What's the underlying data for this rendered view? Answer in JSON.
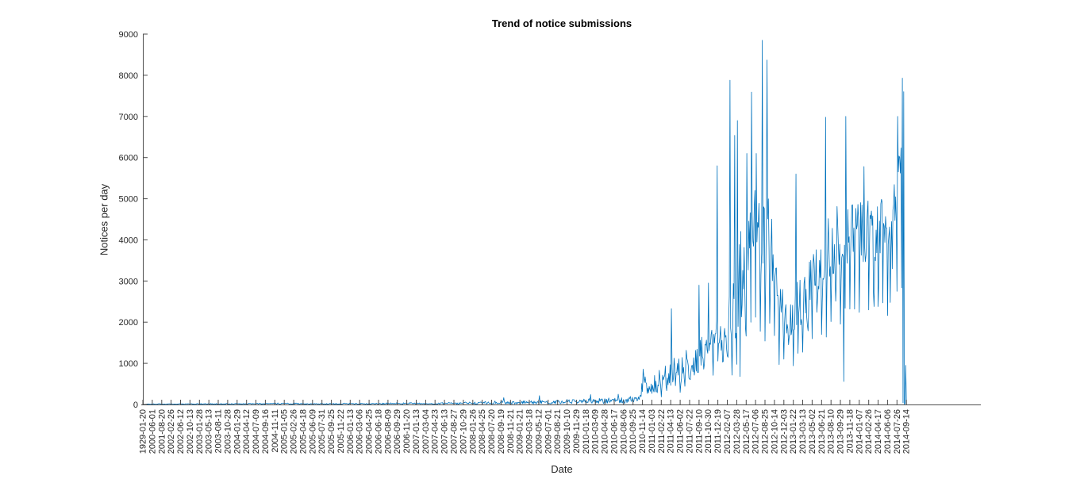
{
  "chart_data": {
    "type": "line",
    "title": "Trend of notice submissions",
    "xlabel": "Date",
    "ylabel": "Notices per day",
    "ylim": [
      0,
      9000
    ],
    "y_ticks": [
      0,
      1000,
      2000,
      3000,
      4000,
      5000,
      6000,
      7000,
      8000,
      9000
    ],
    "grid": false,
    "legend": "none",
    "line_color": "#0072BD",
    "axis_color": "#4d4d4d",
    "text_color": "#262626",
    "x_tick_labels": [
      "1929-01-20",
      "2000-06-01",
      "2001-08-20",
      "2002-02-26",
      "2002-06-12",
      "2002-10-13",
      "2003-01-28",
      "2003-05-13",
      "2003-08-11",
      "2003-10-28",
      "2004-01-29",
      "2004-04-12",
      "2004-07-09",
      "2004-09-16",
      "2004-11-11",
      "2005-01-05",
      "2005-02-26",
      "2005-04-18",
      "2005-06-09",
      "2005-07-31",
      "2005-09-25",
      "2005-11-22",
      "2006-01-13",
      "2006-03-06",
      "2006-04-25",
      "2006-06-18",
      "2006-08-09",
      "2006-09-29",
      "2006-11-20",
      "2007-01-13",
      "2007-03-04",
      "2007-04-23",
      "2007-06-13",
      "2007-08-27",
      "2007-10-29",
      "2008-01-26",
      "2008-04-25",
      "2008-07-20",
      "2008-09-19",
      "2008-11-21",
      "2009-01-21",
      "2009-03-18",
      "2009-05-12",
      "2009-07-01",
      "2009-08-21",
      "2009-10-10",
      "2009-11-29",
      "2010-01-18",
      "2010-03-09",
      "2010-04-28",
      "2010-06-17",
      "2010-08-06",
      "2010-09-25",
      "2010-11-14",
      "2011-01-03",
      "2011-02-22",
      "2011-04-13",
      "2011-06-02",
      "2011-07-22",
      "2011-09-10",
      "2011-10-30",
      "2011-12-19",
      "2012-02-07",
      "2012-03-28",
      "2012-05-17",
      "2012-07-06",
      "2012-08-25",
      "2012-10-14",
      "2012-12-03",
      "2013-01-22",
      "2013-03-13",
      "2013-05-02",
      "2013-06-21",
      "2013-08-10",
      "2013-09-29",
      "2013-11-18",
      "2014-01-07",
      "2014-02-26",
      "2014-04-17",
      "2014-06-06",
      "2014-07-26",
      "2014-09-14"
    ],
    "series_envelope": [
      [
        0,
        3,
        3
      ],
      [
        1,
        10,
        9
      ],
      [
        5,
        12,
        10
      ],
      [
        9,
        16,
        13
      ],
      [
        13,
        18,
        15
      ],
      [
        16,
        22,
        18
      ],
      [
        18,
        14,
        11
      ],
      [
        20,
        18,
        15
      ],
      [
        22,
        20,
        16
      ],
      [
        24,
        16,
        13
      ],
      [
        26,
        24,
        19
      ],
      [
        28,
        28,
        22
      ],
      [
        30,
        20,
        16
      ],
      [
        32,
        26,
        20
      ],
      [
        34,
        32,
        25
      ],
      [
        36,
        36,
        28
      ],
      [
        38,
        55,
        42
      ],
      [
        39,
        44,
        34
      ],
      [
        40,
        52,
        40
      ],
      [
        41,
        58,
        45
      ],
      [
        42,
        50,
        38
      ],
      [
        43,
        66,
        50
      ],
      [
        44,
        58,
        44
      ],
      [
        45,
        75,
        56
      ],
      [
        46,
        64,
        48
      ],
      [
        47,
        85,
        62
      ],
      [
        48,
        78,
        58
      ],
      [
        49,
        95,
        70
      ],
      [
        50,
        88,
        64
      ],
      [
        51,
        105,
        75
      ],
      [
        52,
        125,
        85
      ],
      [
        52.8,
        155,
        100
      ],
      [
        53.0,
        700,
        160
      ],
      [
        53.5,
        430,
        210
      ],
      [
        54.2,
        520,
        240
      ],
      [
        55,
        620,
        280
      ],
      [
        56,
        760,
        320
      ],
      [
        57,
        900,
        370
      ],
      [
        58,
        1050,
        420
      ],
      [
        59,
        1200,
        460
      ],
      [
        60,
        1380,
        520
      ],
      [
        61,
        1600,
        580
      ],
      [
        62,
        1850,
        660
      ],
      [
        62.5,
        2200,
        800
      ],
      [
        63,
        2450,
        900
      ],
      [
        63.5,
        3300,
        1150
      ],
      [
        64,
        2700,
        950
      ],
      [
        64.5,
        4400,
        950
      ],
      [
        65,
        4600,
        700
      ],
      [
        65.5,
        4100,
        850
      ],
      [
        66,
        3900,
        900
      ],
      [
        66.5,
        4200,
        1000
      ],
      [
        67,
        3500,
        800
      ],
      [
        67.5,
        2750,
        700
      ],
      [
        68,
        2350,
        600
      ],
      [
        68.6,
        2100,
        550
      ],
      [
        69,
        2250,
        600
      ],
      [
        70,
        2650,
        700
      ],
      [
        71,
        3050,
        780
      ],
      [
        72,
        3500,
        800
      ],
      [
        73,
        3900,
        800
      ],
      [
        74,
        4100,
        780
      ],
      [
        75,
        4200,
        800
      ],
      [
        76,
        4150,
        800
      ],
      [
        77,
        4300,
        820
      ],
      [
        78,
        4250,
        880
      ],
      [
        79,
        4350,
        900
      ],
      [
        79.7,
        4800,
        950
      ],
      [
        80.2,
        5700,
        1000
      ],
      [
        80.55,
        6700,
        850
      ],
      [
        80.72,
        6500,
        800
      ],
      [
        80.78,
        15,
        10
      ],
      [
        81,
        30,
        25
      ]
    ],
    "spikes": [
      [
        38.3,
        165
      ],
      [
        42.1,
        215
      ],
      [
        47.5,
        240
      ],
      [
        50.4,
        250
      ],
      [
        53.1,
        860
      ],
      [
        56.1,
        2330
      ],
      [
        59.0,
        2900
      ],
      [
        60.0,
        2950
      ],
      [
        60.9,
        5800
      ],
      [
        62.3,
        7880
      ],
      [
        62.75,
        6540
      ],
      [
        63.05,
        6900
      ],
      [
        63.35,
        680
      ],
      [
        64.05,
        6100
      ],
      [
        64.6,
        7590
      ],
      [
        65.1,
        6100
      ],
      [
        65.7,
        8850
      ],
      [
        66.2,
        8370
      ],
      [
        69.3,
        5600
      ],
      [
        72.4,
        6980
      ],
      [
        74.35,
        560
      ],
      [
        74.6,
        7000
      ],
      [
        76.5,
        5780
      ],
      [
        77.6,
        2380
      ],
      [
        79.3,
        2480
      ],
      [
        80.1,
        7000
      ],
      [
        80.6,
        7930
      ],
      [
        80.66,
        40
      ],
      [
        80.7,
        7600
      ],
      [
        80.75,
        8
      ],
      [
        80.95,
        950
      ]
    ],
    "render_hints": {
      "samples_per_interval": 14,
      "seed": 20,
      "weekly_dip": true
    }
  }
}
